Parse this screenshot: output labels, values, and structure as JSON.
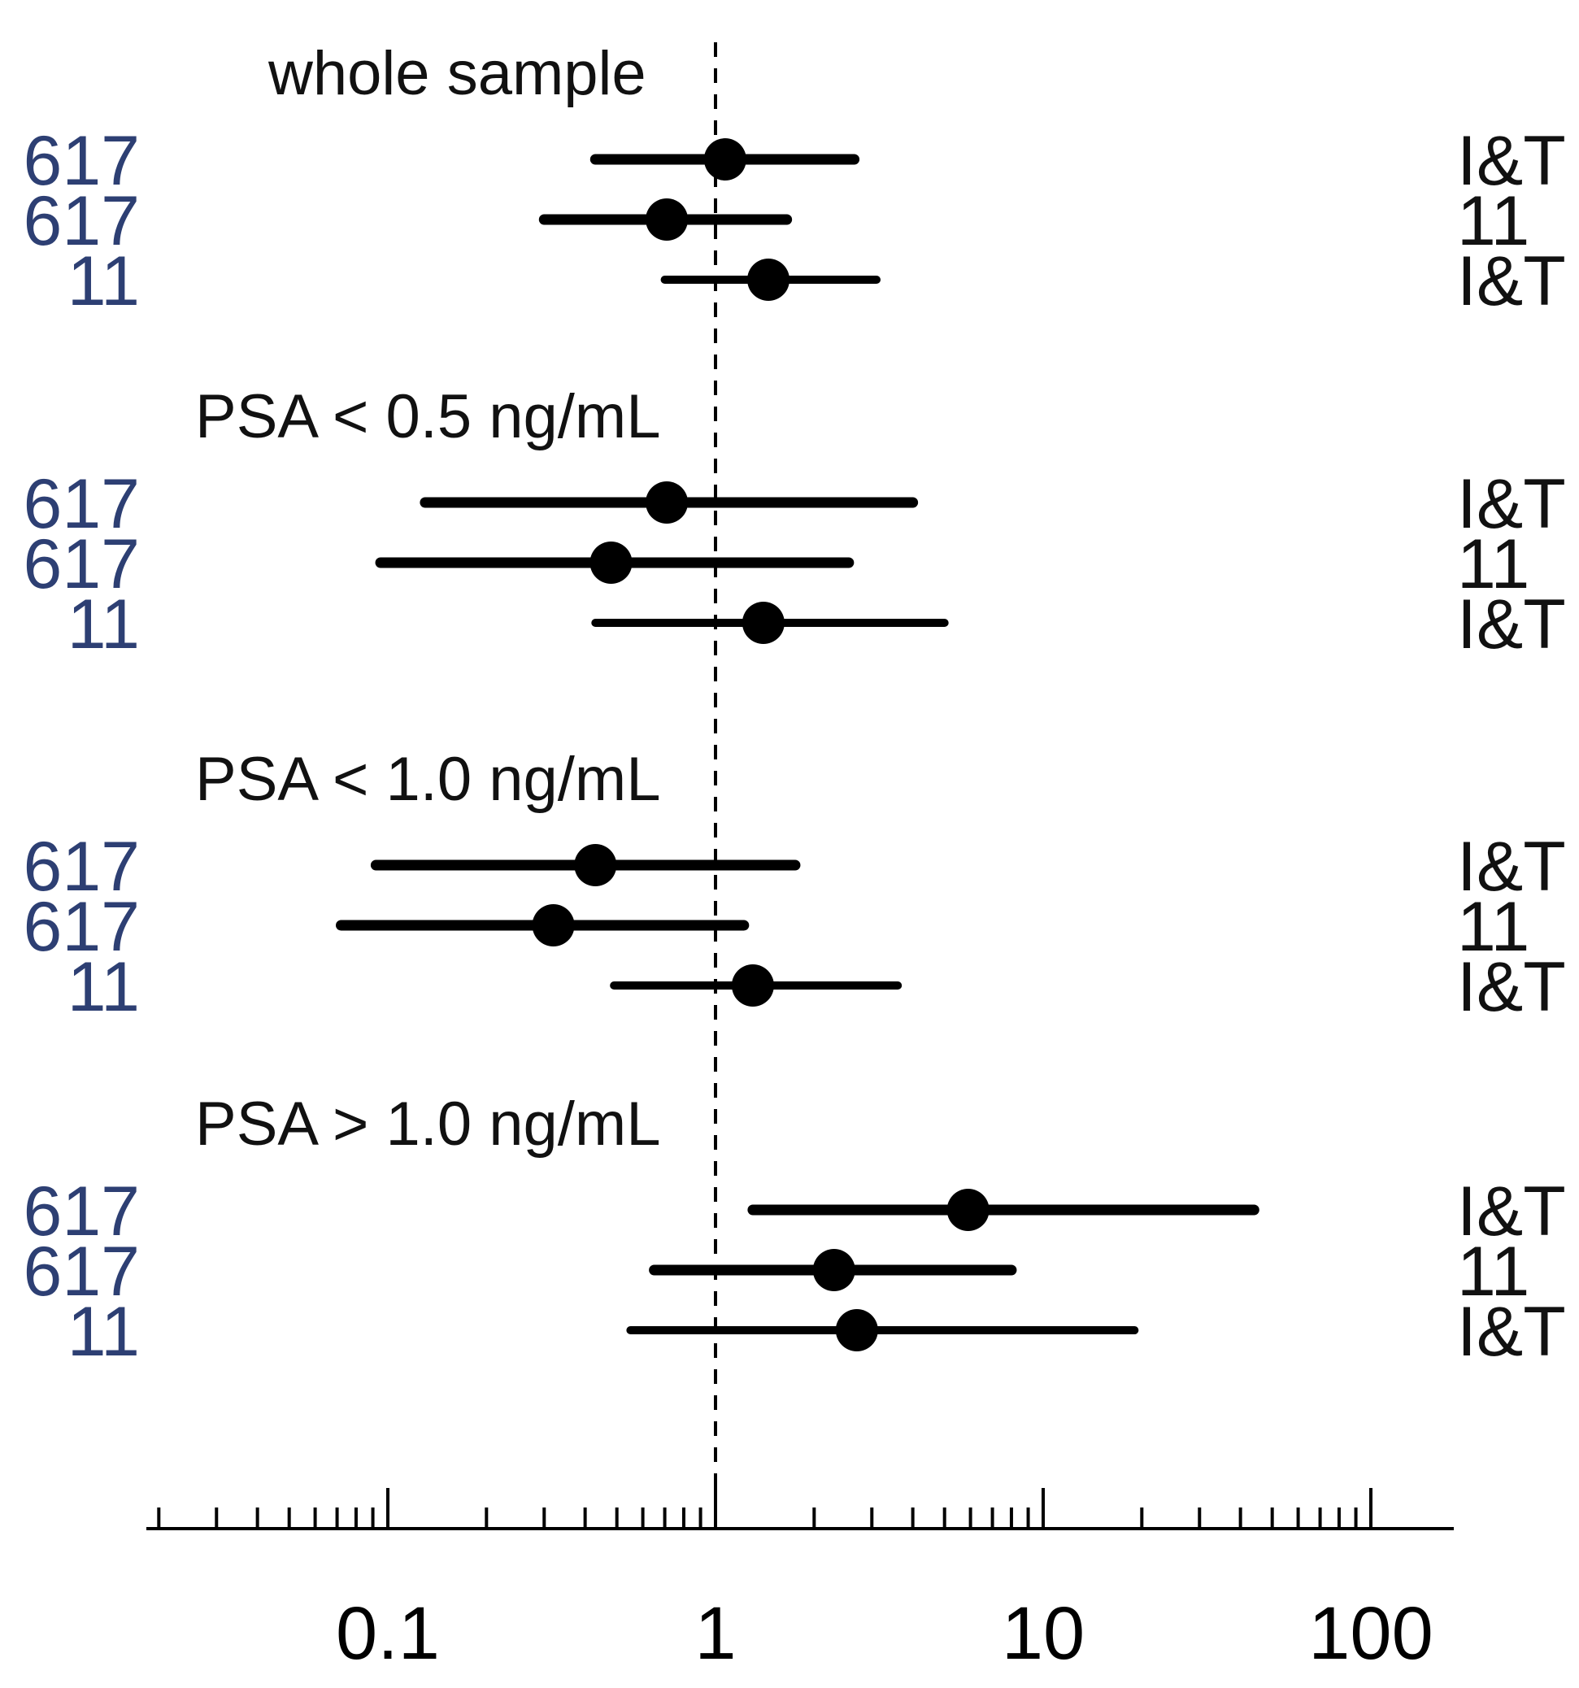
{
  "chart_data": {
    "type": "forest",
    "xscale": "log",
    "xlim": [
      0.02,
      170
    ],
    "reference_line": 1,
    "x_ticks": [
      {
        "value": 0.1,
        "label": "0.1"
      },
      {
        "value": 1,
        "label": "1"
      },
      {
        "value": 10,
        "label": "10"
      },
      {
        "value": 100,
        "label": "100"
      }
    ],
    "groups": [
      {
        "title": "whole sample",
        "rows": [
          {
            "left": "617",
            "right": "I&T",
            "estimate": 1.07,
            "lower": 0.43,
            "upper": 2.65
          },
          {
            "left": "617",
            "right": "11",
            "estimate": 0.71,
            "lower": 0.3,
            "upper": 1.65
          },
          {
            "left": "11",
            "right": "I&T",
            "estimate": 1.45,
            "lower": 0.7,
            "upper": 3.1
          }
        ]
      },
      {
        "title": "PSA < 0.5 ng/mL",
        "rows": [
          {
            "left": "617",
            "right": "I&T",
            "estimate": 0.71,
            "lower": 0.13,
            "upper": 4.0
          },
          {
            "left": "617",
            "right": "11",
            "estimate": 0.48,
            "lower": 0.095,
            "upper": 2.55
          },
          {
            "left": "11",
            "right": "I&T",
            "estimate": 1.4,
            "lower": 0.43,
            "upper": 5.0
          }
        ]
      },
      {
        "title": "PSA < 1.0 ng/mL",
        "rows": [
          {
            "left": "617",
            "right": "I&T",
            "estimate": 0.43,
            "lower": 0.092,
            "upper": 1.75
          },
          {
            "left": "617",
            "right": "11",
            "estimate": 0.32,
            "lower": 0.072,
            "upper": 1.22
          },
          {
            "left": "11",
            "right": "I&T",
            "estimate": 1.3,
            "lower": 0.49,
            "upper": 3.6
          }
        ]
      },
      {
        "title": "PSA > 1.0 ng/mL",
        "rows": [
          {
            "left": "617",
            "right": "I&T",
            "estimate": 5.9,
            "lower": 1.3,
            "upper": 44
          },
          {
            "left": "617",
            "right": "11",
            "estimate": 2.3,
            "lower": 0.65,
            "upper": 8.0
          },
          {
            "left": "11",
            "right": "I&T",
            "estimate": 2.7,
            "lower": 0.55,
            "upper": 19
          }
        ]
      }
    ],
    "colors": {
      "line": "#000000",
      "left_label": "#2d3f73",
      "right_label": "#111111",
      "reference_line": "#000000",
      "axis": "#000000"
    }
  }
}
